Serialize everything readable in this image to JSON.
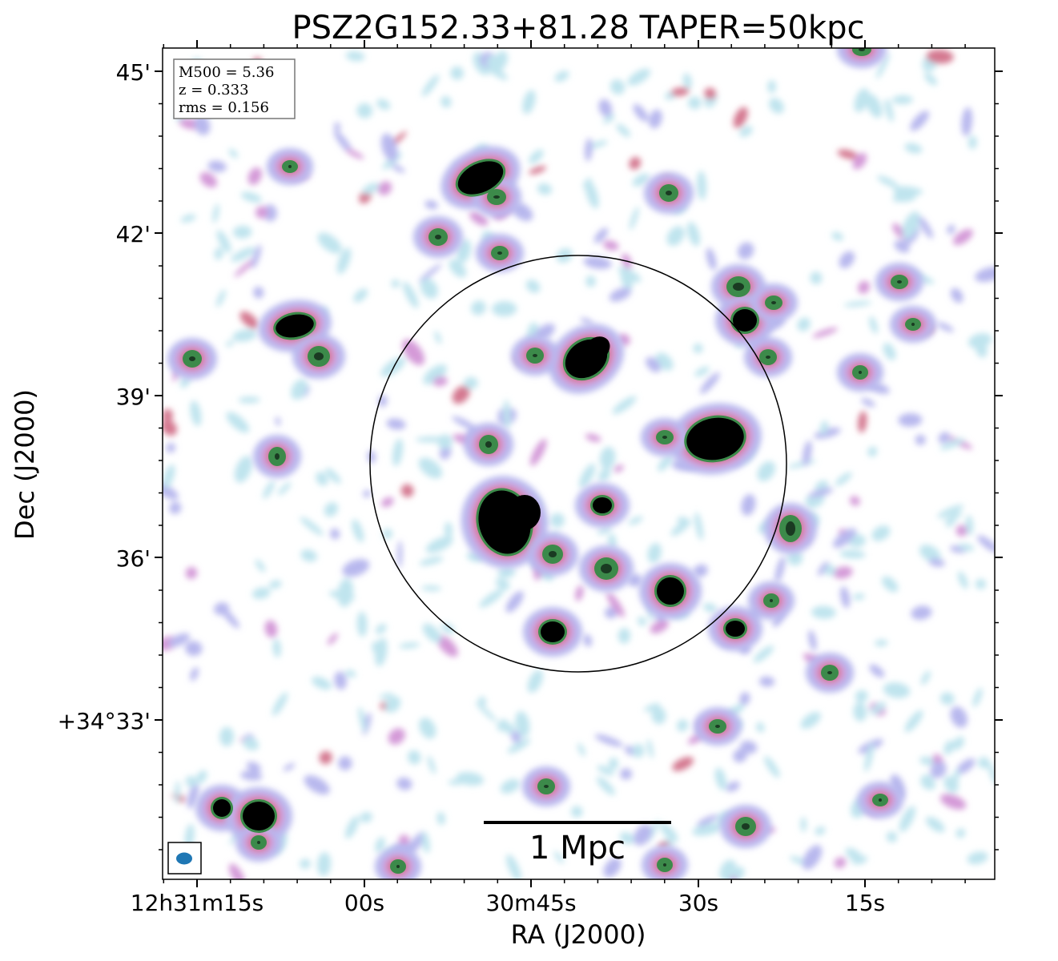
{
  "title": "PSZ2G152.33+81.28 TAPER=50kpc",
  "xlabel": "RA (J2000)",
  "ylabel": "Dec (J2000)",
  "x_ticks": [
    "12h31m15s",
    "00s",
    "30m45s",
    "30s",
    "15s"
  ],
  "y_ticks": [
    "45'",
    "42'",
    "39'",
    "36'",
    "+34°33'"
  ],
  "info_box": {
    "m500": "M500 = 5.36",
    "z": "z = 0.333",
    "rms": "rms = 0.156"
  },
  "scale_bar_label": "1 Mpc",
  "colors": {
    "faint": "#bfe4ee",
    "low": "#b8b8ee",
    "mid": "#d49ad8",
    "high": "#d47890",
    "peak": "#3c8a4a",
    "core": "#000000",
    "beam": "#1f77b4"
  }
}
